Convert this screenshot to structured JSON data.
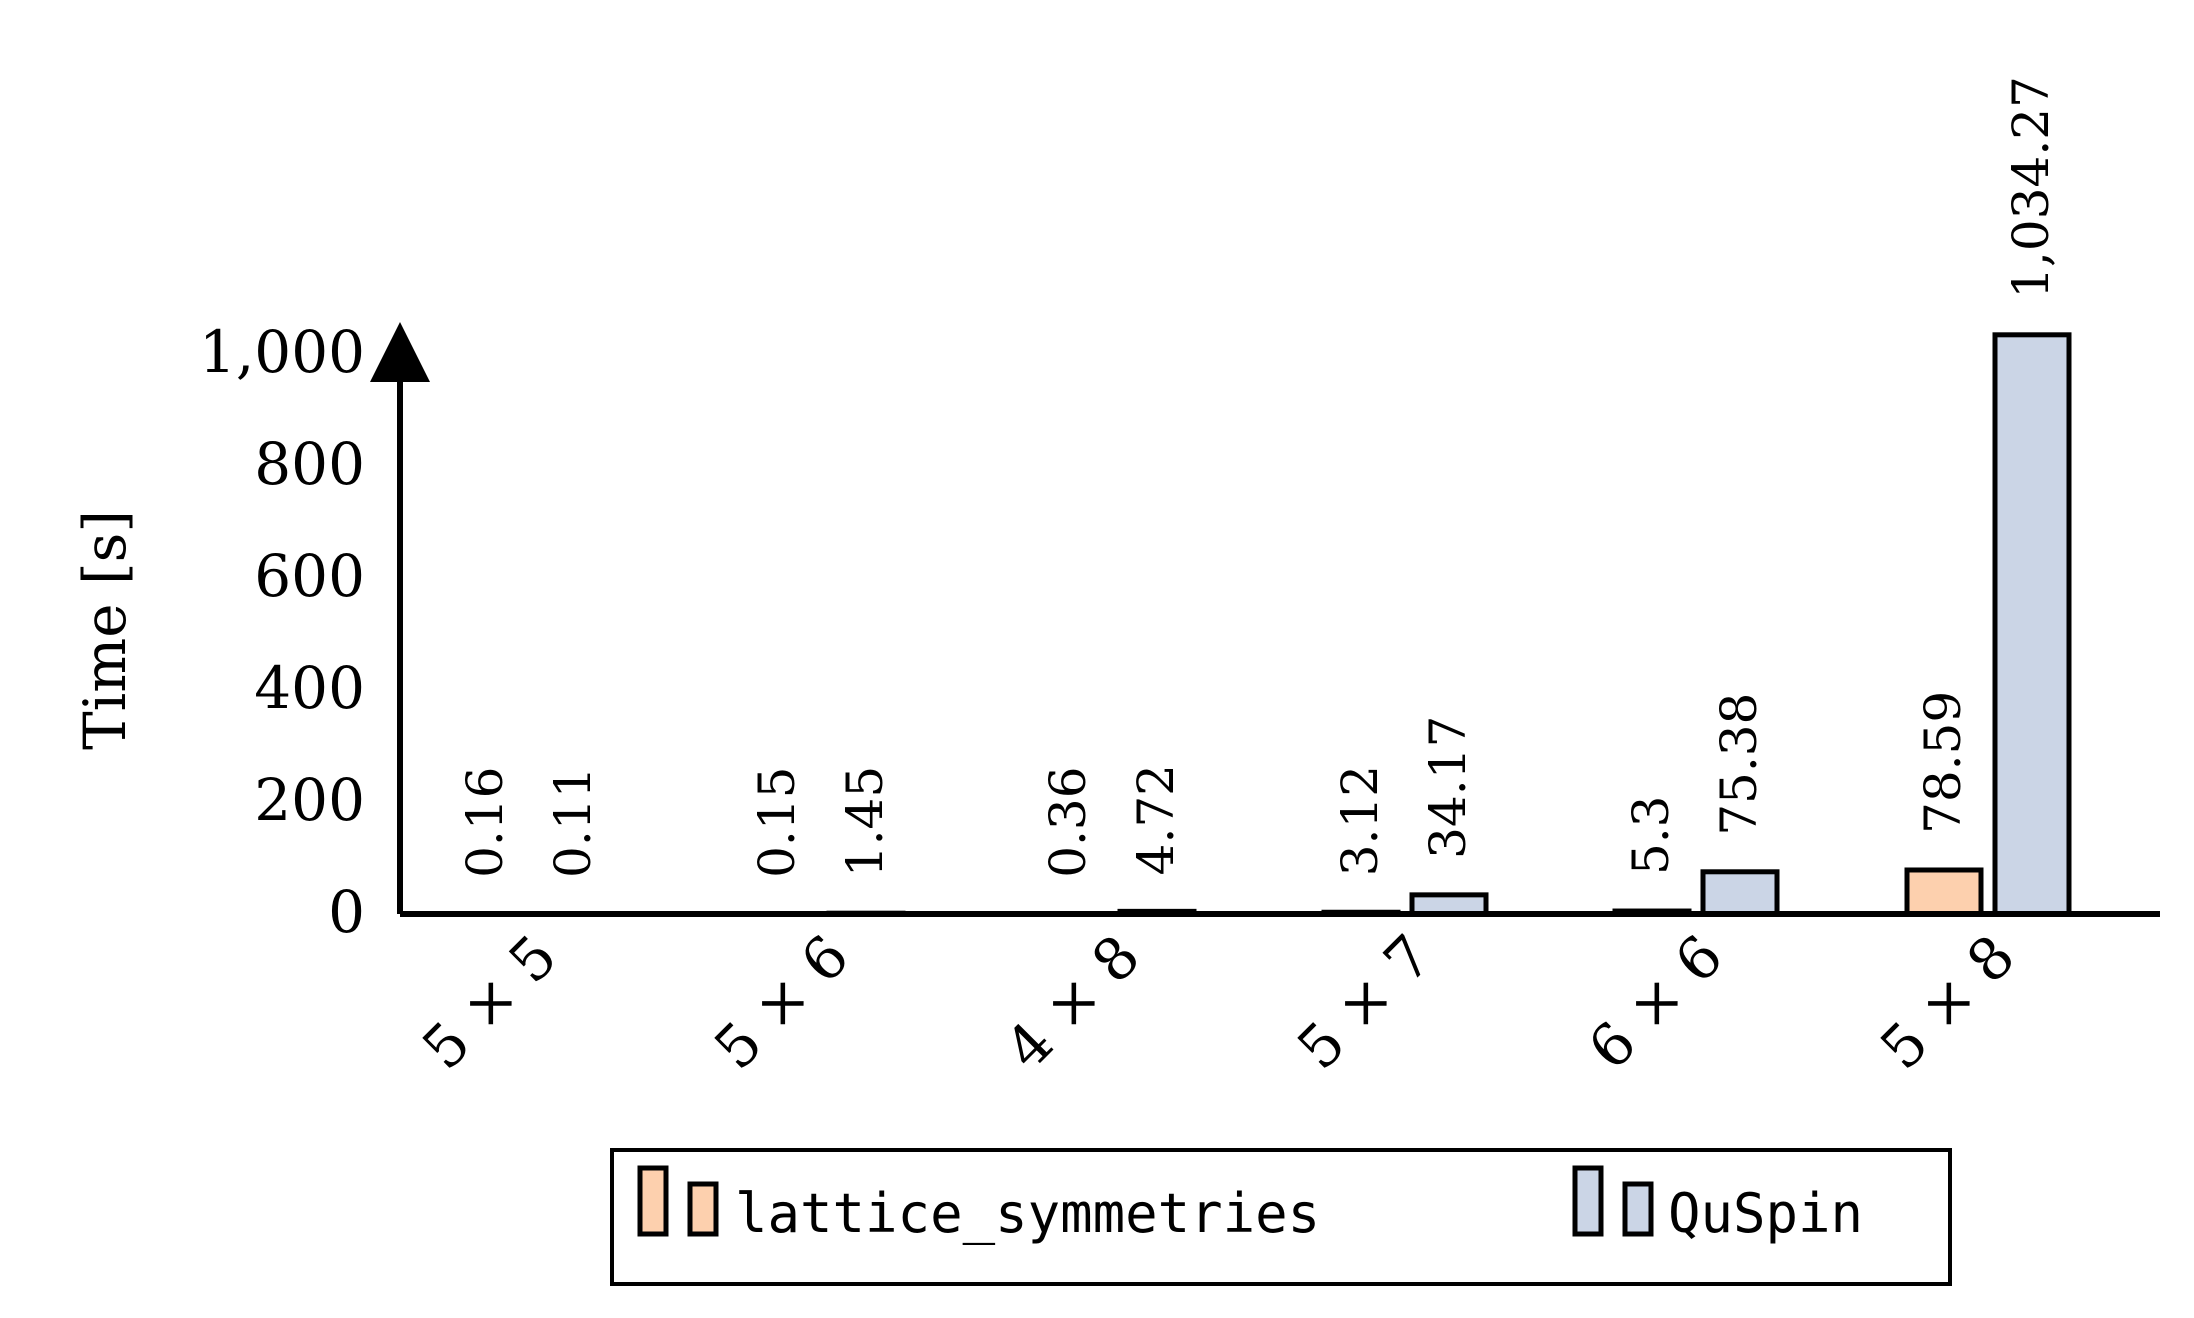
{
  "chart_data": {
    "type": "bar",
    "ylabel": "Time [s]",
    "xlabel": "",
    "ylim": [
      0,
      1000
    ],
    "y_ticks": [
      "0",
      "200",
      "400",
      "600",
      "800",
      "1,000"
    ],
    "y_tick_values": [
      0,
      200,
      400,
      600,
      800,
      1000
    ],
    "categories": [
      "5 × 5",
      "5 × 6",
      "4 × 8",
      "5 × 7",
      "6 × 6",
      "5 × 8"
    ],
    "series": [
      {
        "name": "lattice_symmetries",
        "color": "#fdd0ae",
        "values": [
          0.16,
          0.15,
          0.36,
          3.12,
          5.3,
          78.59
        ],
        "labels": [
          "0.16",
          "0.15",
          "0.36",
          "3.12",
          "5.3",
          "78.59"
        ]
      },
      {
        "name": "QuSpin",
        "color": "#cbd5e6",
        "values": [
          0.11,
          1.45,
          4.72,
          34.17,
          75.38,
          1034.27
        ],
        "labels": [
          "0.11",
          "1.45",
          "4.72",
          "34.17",
          "75.38",
          "1,034.27"
        ]
      }
    ],
    "legend": "bottom-center",
    "grid": false
  }
}
